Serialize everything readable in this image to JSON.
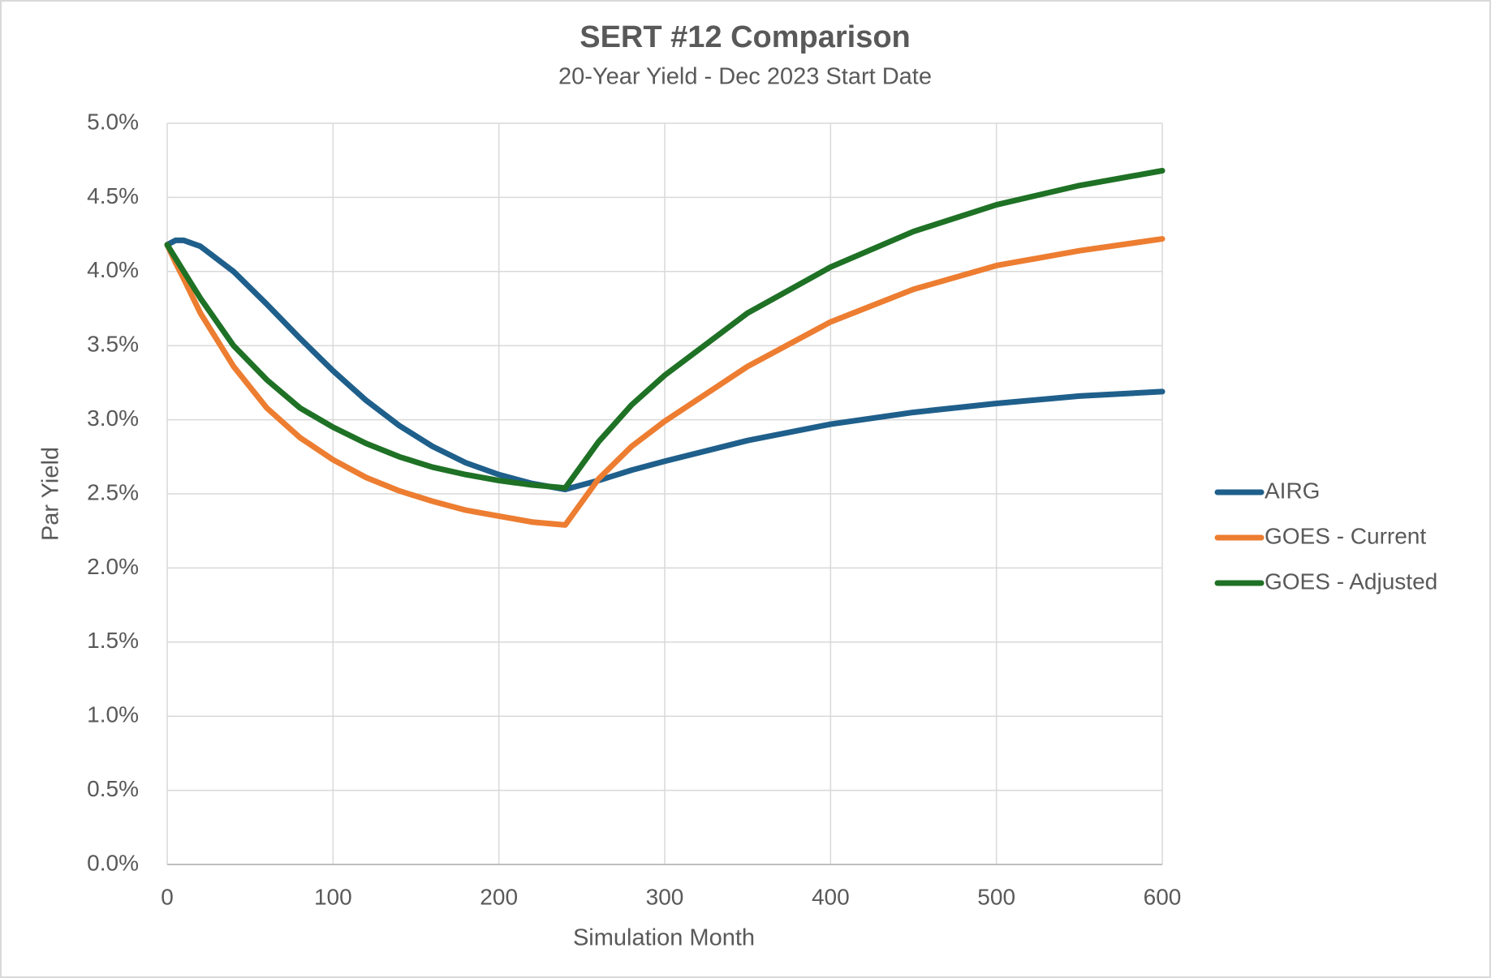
{
  "chart_data": {
    "type": "line",
    "title": "SERT #12 Comparison",
    "subtitle": "20-Year Yield - Dec 2023 Start Date",
    "x_label": "Simulation Month",
    "y_label": "Par Yield",
    "x": [
      0,
      5,
      10,
      20,
      40,
      60,
      80,
      100,
      120,
      140,
      160,
      180,
      200,
      220,
      240,
      260,
      280,
      300,
      350,
      400,
      450,
      500,
      550,
      600
    ],
    "series": [
      {
        "name": "AIRG",
        "color": "#1f5f8b",
        "values": [
          4.18,
          4.21,
          4.21,
          4.17,
          4.0,
          3.78,
          3.55,
          3.33,
          3.13,
          2.96,
          2.82,
          2.71,
          2.63,
          2.57,
          2.53,
          2.59,
          2.66,
          2.72,
          2.86,
          2.97,
          3.05,
          3.11,
          3.16,
          3.19
        ]
      },
      {
        "name": "GOES - Current",
        "color": "#ed7d31",
        "values": [
          4.18,
          4.06,
          3.95,
          3.72,
          3.36,
          3.08,
          2.88,
          2.73,
          2.61,
          2.52,
          2.45,
          2.39,
          2.35,
          2.31,
          2.29,
          2.6,
          2.82,
          2.99,
          3.36,
          3.66,
          3.88,
          4.04,
          4.14,
          4.22
        ]
      },
      {
        "name": "GOES - Adjusted",
        "color": "#1e7125",
        "values": [
          4.18,
          4.09,
          4.0,
          3.82,
          3.5,
          3.27,
          3.08,
          2.95,
          2.84,
          2.75,
          2.68,
          2.63,
          2.59,
          2.56,
          2.54,
          2.85,
          3.1,
          3.3,
          3.72,
          4.03,
          4.27,
          4.45,
          4.58,
          4.68
        ]
      }
    ],
    "xlim": [
      0,
      600
    ],
    "xticks": [
      0,
      100,
      200,
      300,
      400,
      500,
      600
    ],
    "ylim": [
      0,
      5
    ],
    "yticks": [
      {
        "value": 0,
        "label": "0.0%"
      },
      {
        "value": 0.5,
        "label": "0.5%"
      },
      {
        "value": 1,
        "label": "1.0%"
      },
      {
        "value": 1.5,
        "label": "1.5%"
      },
      {
        "value": 2,
        "label": "2.0%"
      },
      {
        "value": 2.5,
        "label": "2.5%"
      },
      {
        "value": 3,
        "label": "3.0%"
      },
      {
        "value": 3.5,
        "label": "3.5%"
      },
      {
        "value": 4,
        "label": "4.0%"
      },
      {
        "value": 4.5,
        "label": "4.5%"
      },
      {
        "value": 5,
        "label": "5.0%"
      }
    ],
    "grid": true,
    "legend": "right"
  }
}
